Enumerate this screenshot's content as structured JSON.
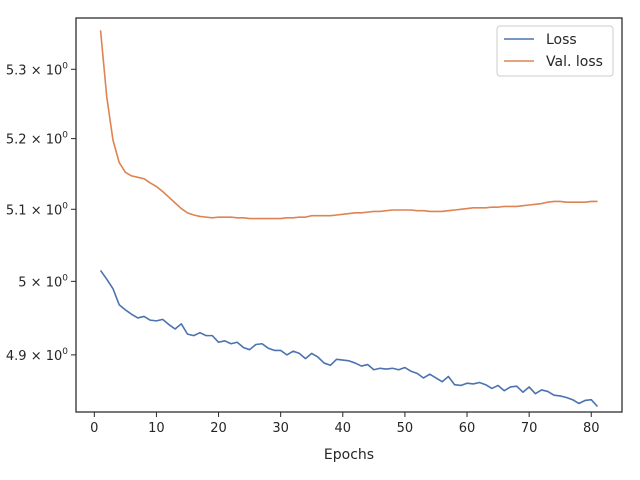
{
  "chart_data": {
    "type": "line",
    "title": "",
    "xlabel": "Epochs",
    "ylabel": "",
    "xlim": [
      -2.95,
      84.95
    ],
    "ylim": [
      4.8237,
      5.3752
    ],
    "y_scale": "log",
    "x_ticks": [
      0,
      10,
      20,
      30,
      40,
      50,
      60,
      70,
      80
    ],
    "x_tick_labels": [
      "0",
      "10",
      "20",
      "30",
      "40",
      "50",
      "60",
      "70",
      "80"
    ],
    "y_ticks": [
      4.9,
      5.0,
      5.1,
      5.2,
      5.3
    ],
    "y_tick_labels": [
      {
        "mantissa": "4.9",
        "exponent": "0"
      },
      {
        "mantissa": "5",
        "exponent": "0"
      },
      {
        "mantissa": "5.1",
        "exponent": "0"
      },
      {
        "mantissa": "5.2",
        "exponent": "0"
      },
      {
        "mantissa": "5.3",
        "exponent": "0"
      }
    ],
    "grid": false,
    "legend_position": "top-right",
    "series": [
      {
        "name": "Loss",
        "color": "#4c72b0",
        "x": [
          1,
          2,
          3,
          4,
          5,
          6,
          7,
          8,
          9,
          10,
          11,
          12,
          13,
          14,
          15,
          16,
          17,
          18,
          19,
          20,
          21,
          22,
          23,
          24,
          25,
          26,
          27,
          28,
          29,
          30,
          31,
          32,
          33,
          34,
          35,
          36,
          37,
          38,
          39,
          40,
          41,
          42,
          43,
          44,
          45,
          46,
          47,
          48,
          49,
          50,
          51,
          52,
          53,
          54,
          55,
          56,
          57,
          58,
          59,
          60,
          61,
          62,
          63,
          64,
          65,
          66,
          67,
          68,
          69,
          70,
          71,
          72,
          73,
          74,
          75,
          76,
          77,
          78,
          79,
          80,
          81
        ],
        "y": [
          5.015,
          5.003,
          4.99,
          4.968,
          4.961,
          4.955,
          4.95,
          4.952,
          4.947,
          4.946,
          4.948,
          4.941,
          4.935,
          4.942,
          4.928,
          4.926,
          4.93,
          4.926,
          4.926,
          4.917,
          4.919,
          4.915,
          4.917,
          4.91,
          4.907,
          4.914,
          4.915,
          4.909,
          4.906,
          4.906,
          4.9,
          4.905,
          4.902,
          4.895,
          4.902,
          4.897,
          4.889,
          4.886,
          4.894,
          4.893,
          4.892,
          4.889,
          4.885,
          4.887,
          4.88,
          4.882,
          4.881,
          4.882,
          4.88,
          4.883,
          4.878,
          4.875,
          4.869,
          4.874,
          4.869,
          4.864,
          4.871,
          4.86,
          4.859,
          4.862,
          4.861,
          4.863,
          4.86,
          4.855,
          4.859,
          4.852,
          4.857,
          4.858,
          4.85,
          4.857,
          4.848,
          4.853,
          4.851,
          4.846,
          4.845,
          4.843,
          4.84,
          4.835,
          4.839,
          4.84,
          4.831
        ]
      },
      {
        "name": "Val. loss",
        "color": "#dd8452",
        "x": [
          1,
          2,
          3,
          4,
          5,
          6,
          7,
          8,
          9,
          10,
          11,
          12,
          13,
          14,
          15,
          16,
          17,
          18,
          19,
          20,
          21,
          22,
          23,
          24,
          25,
          26,
          27,
          28,
          29,
          30,
          31,
          32,
          33,
          34,
          35,
          36,
          37,
          38,
          39,
          40,
          41,
          42,
          43,
          44,
          45,
          46,
          47,
          48,
          49,
          50,
          51,
          52,
          53,
          54,
          55,
          56,
          57,
          58,
          59,
          60,
          61,
          62,
          63,
          64,
          65,
          66,
          67,
          68,
          69,
          70,
          71,
          72,
          73,
          74,
          75,
          76,
          77,
          78,
          79,
          80,
          81
        ],
        "y": [
          5.357,
          5.26,
          5.198,
          5.166,
          5.152,
          5.147,
          5.145,
          5.143,
          5.137,
          5.132,
          5.125,
          5.117,
          5.109,
          5.101,
          5.095,
          5.092,
          5.09,
          5.089,
          5.088,
          5.089,
          5.089,
          5.089,
          5.088,
          5.088,
          5.087,
          5.087,
          5.087,
          5.087,
          5.087,
          5.087,
          5.088,
          5.088,
          5.089,
          5.089,
          5.091,
          5.091,
          5.091,
          5.091,
          5.092,
          5.093,
          5.094,
          5.095,
          5.095,
          5.096,
          5.097,
          5.097,
          5.098,
          5.099,
          5.099,
          5.099,
          5.099,
          5.098,
          5.098,
          5.097,
          5.097,
          5.097,
          5.098,
          5.099,
          5.1,
          5.101,
          5.102,
          5.102,
          5.102,
          5.103,
          5.103,
          5.104,
          5.104,
          5.104,
          5.105,
          5.106,
          5.107,
          5.108,
          5.11,
          5.111,
          5.111,
          5.11,
          5.11,
          5.11,
          5.11,
          5.111,
          5.111
        ]
      }
    ]
  }
}
